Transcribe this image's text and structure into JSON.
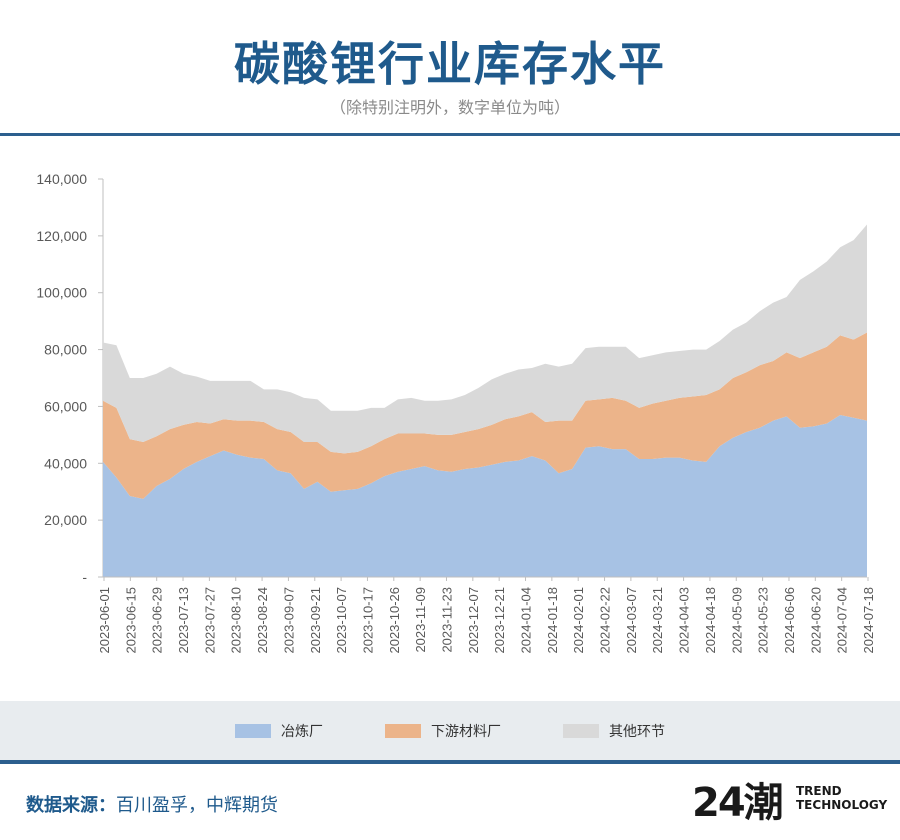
{
  "header": {
    "title": "碳酸锂行业库存水平",
    "subtitle": "（除特别注明外，数字单位为吨）"
  },
  "footer": {
    "source_label": "数据来源：",
    "source_value": "百川盈孚，中辉期货",
    "logo_mark": "24潮",
    "logo_line1": "TREND",
    "logo_line2": "TECHNOLOGY"
  },
  "colors": {
    "smelter": "#a7c2e4",
    "downstream": "#ecb48a",
    "other": "#d9d9d9",
    "accent": "#1f5a8c"
  },
  "chart_data": {
    "type": "area",
    "stacked": true,
    "title": "碳酸锂行业库存水平",
    "ylabel": "",
    "xlabel": "",
    "ylim": [
      0,
      140000
    ],
    "y_ticks": [
      0,
      20000,
      40000,
      60000,
      80000,
      100000,
      120000,
      140000
    ],
    "y_tick_labels": [
      "-",
      "20,000",
      "40,000",
      "60,000",
      "80,000",
      "100,000",
      "120,000",
      "140,000"
    ],
    "x_tick_labels": [
      "2023-06-01",
      "2023-06-15",
      "2023-06-29",
      "2023-07-13",
      "2023-07-27",
      "2023-08-10",
      "2023-08-24",
      "2023-09-07",
      "2023-09-21",
      "2023-10-07",
      "2023-10-17",
      "2023-10-26",
      "2023-11-09",
      "2023-11-23",
      "2023-12-07",
      "2023-12-21",
      "2024-01-04",
      "2024-01-18",
      "2024-02-01",
      "2024-02-22",
      "2024-03-07",
      "2024-03-21",
      "2024-04-03",
      "2024-04-18",
      "2024-05-09",
      "2024-05-23",
      "2024-06-06",
      "2024-06-20",
      "2024-07-04",
      "2024-07-18"
    ],
    "series": [
      {
        "name": "冶炼厂",
        "values": [
          40500,
          35000,
          28500,
          27500,
          32000,
          34500,
          38000,
          40500,
          42500,
          44500,
          43000,
          42000,
          41500,
          37500,
          36500,
          31000,
          33500,
          30000,
          30500,
          31000,
          33000,
          35500,
          37000,
          38000,
          39000,
          37500,
          37000,
          38000,
          38500,
          39500,
          40500,
          41000,
          42500,
          41000,
          36500,
          38000,
          45500,
          46000,
          45000,
          45000,
          41500,
          41500,
          42000,
          42000,
          41000,
          40500,
          46000,
          49000,
          51000,
          52500,
          55000,
          56500,
          52500,
          53000,
          54000,
          57000,
          56000,
          55000
        ]
      },
      {
        "name": "下游材料厂",
        "values": [
          21500,
          24500,
          20000,
          20000,
          17500,
          17500,
          15500,
          14000,
          11500,
          11000,
          12000,
          13000,
          13000,
          14500,
          14500,
          16500,
          14000,
          14000,
          13000,
          13000,
          13000,
          13000,
          13500,
          12500,
          11500,
          12500,
          13000,
          13000,
          13500,
          14000,
          15000,
          15500,
          15500,
          13500,
          18500,
          17000,
          16500,
          16500,
          18000,
          17000,
          18000,
          19500,
          20000,
          21000,
          22500,
          23500,
          20000,
          21000,
          21000,
          22000,
          21000,
          22500,
          24500,
          26000,
          27000,
          28000,
          27500,
          31000
        ]
      },
      {
        "name": "其他环节",
        "values": [
          20500,
          22000,
          21500,
          22500,
          22000,
          22000,
          18000,
          16000,
          15000,
          13500,
          14000,
          14000,
          11500,
          14000,
          14000,
          15500,
          15000,
          14500,
          15000,
          14500,
          13500,
          11000,
          12000,
          12500,
          11500,
          12000,
          12500,
          13000,
          14500,
          16000,
          16000,
          16500,
          15500,
          20500,
          19000,
          20000,
          18500,
          18500,
          18000,
          19000,
          17500,
          17000,
          17000,
          16500,
          16500,
          16000,
          17000,
          17000,
          17500,
          19000,
          20500,
          19500,
          27500,
          28500,
          30000,
          31000,
          35000,
          38000
        ]
      }
    ],
    "legend": [
      "冶炼厂",
      "下游材料厂",
      "其他环节"
    ],
    "legend_position": "bottom"
  }
}
